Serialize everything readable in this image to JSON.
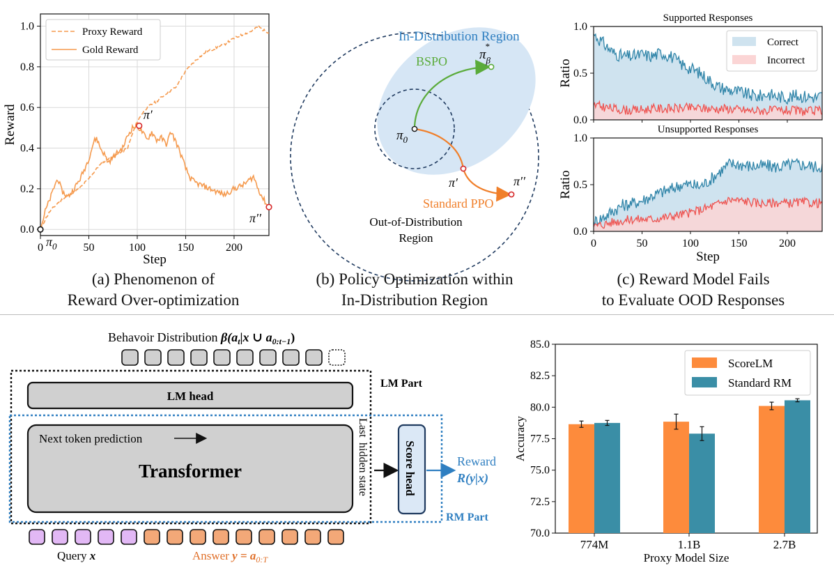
{
  "panel_a": {
    "caption_line1": "(a) Phenomenon of",
    "caption_line2": "Reward Over-optimization",
    "legend": [
      "Proxy Reward",
      "Gold Reward"
    ],
    "points": {
      "pi0": "π",
      "pi0_sub": "0",
      "pi_prime": "π′",
      "pi_dprime": "π′′"
    },
    "colors": {
      "proxy": "#f59a4e",
      "gold": "#f59a4e",
      "marker": "#d62728"
    }
  },
  "panel_b": {
    "caption_line1": "(b) Policy Optimization within",
    "caption_line2": "In-Distribution Region",
    "in_dist_label": "In-Distribution Region",
    "ood_label_line1": "Out-of-Distribution",
    "ood_label_line2": "Region",
    "bspo_label": "BSPO",
    "ppo_label": "Standard PPO",
    "pi0": "π",
    "pi0_sub": "0",
    "pi_prime": "π′",
    "pi_dprime": "π′′",
    "pi_beta": "π",
    "pi_beta_sub": "β",
    "pi_beta_sup": "*",
    "colors": {
      "region": "#d6e6f5",
      "dashed": "#1f3a5f",
      "bspo": "#5aab3a",
      "ppo": "#f07f2a",
      "in_dist_text": "#2f7fc1"
    }
  },
  "panel_c": {
    "caption_line1": "(c) Reward Model Fails",
    "caption_line2": "to Evaluate OOD Responses",
    "legend": [
      "Correct",
      "Incorrect"
    ],
    "colors": {
      "correct_line": "#2f84a8",
      "correct_fill": "#cfe3ef",
      "incorrect_line": "#ef5350",
      "incorrect_fill": "#fbd5d5"
    }
  },
  "diagram": {
    "behavior_label": "Behavoir Distribution ",
    "behavior_math": "β(a_t | x ∪ a_0:t−1)",
    "behavior_math_b": "β",
    "behavior_math_rest": "(a",
    "behavior_math_sub": "t",
    "behavior_math_mid": "|x ∪ a",
    "behavior_math_sub2": "0:t−1",
    "behavior_math_end": ")",
    "lm_part": "LM Part",
    "lm_head": "LM head",
    "next_token": "Next token prediction",
    "transformer": "Transformer",
    "last_hidden_line1": "Last",
    "last_hidden_line2": "hidden state",
    "score_head": "Score head",
    "reward_label": "Reward",
    "reward_math": "R(y|x)",
    "rm_part": "RM Part",
    "query_label": "Query ",
    "query_math": "x",
    "answer_label": "Answer ",
    "answer_math": "y = a",
    "answer_sub": "0:T",
    "colors": {
      "purple": "#e2b8f5",
      "orange": "#f3a878",
      "gray": "#d0d0d0",
      "blue": "#2f7fc1",
      "orange_text": "#e0702a"
    }
  },
  "chart_data": [
    {
      "type": "line",
      "panel": "a",
      "xlabel": "Step",
      "ylabel": "Reward",
      "xlim": [
        0,
        236
      ],
      "ylim": [
        -0.03,
        1.06
      ],
      "xticks": [
        0,
        50,
        100,
        150,
        200
      ],
      "yticks": [
        0.0,
        0.2,
        0.4,
        0.6,
        0.8,
        1.0
      ],
      "grid": true,
      "legend_position": "top-left",
      "series": [
        {
          "name": "Proxy Reward",
          "style": "dashed",
          "points": [
            [
              0,
              0.0
            ],
            [
              5,
              0.05
            ],
            [
              10,
              0.09
            ],
            [
              20,
              0.14
            ],
            [
              30,
              0.17
            ],
            [
              40,
              0.2
            ],
            [
              50,
              0.25
            ],
            [
              60,
              0.31
            ],
            [
              70,
              0.35
            ],
            [
              80,
              0.37
            ],
            [
              90,
              0.4
            ],
            [
              95,
              0.47
            ],
            [
              100,
              0.53
            ],
            [
              105,
              0.57
            ],
            [
              110,
              0.6
            ],
            [
              120,
              0.63
            ],
            [
              130,
              0.67
            ],
            [
              140,
              0.7
            ],
            [
              150,
              0.78
            ],
            [
              160,
              0.83
            ],
            [
              170,
              0.87
            ],
            [
              180,
              0.89
            ],
            [
              190,
              0.91
            ],
            [
              200,
              0.94
            ],
            [
              210,
              0.96
            ],
            [
              220,
              0.98
            ],
            [
              225,
              1.0
            ],
            [
              230,
              0.98
            ],
            [
              236,
              0.97
            ]
          ]
        },
        {
          "name": "Gold Reward",
          "style": "solid",
          "points": [
            [
              0,
              0.0
            ],
            [
              5,
              0.09
            ],
            [
              10,
              0.15
            ],
            [
              15,
              0.22
            ],
            [
              18,
              0.25
            ],
            [
              22,
              0.19
            ],
            [
              28,
              0.16
            ],
            [
              32,
              0.18
            ],
            [
              36,
              0.21
            ],
            [
              40,
              0.24
            ],
            [
              45,
              0.29
            ],
            [
              50,
              0.35
            ],
            [
              55,
              0.43
            ],
            [
              58,
              0.45
            ],
            [
              62,
              0.4
            ],
            [
              66,
              0.37
            ],
            [
              70,
              0.33
            ],
            [
              74,
              0.35
            ],
            [
              80,
              0.38
            ],
            [
              85,
              0.4
            ],
            [
              90,
              0.46
            ],
            [
              95,
              0.5
            ],
            [
              100,
              0.51
            ],
            [
              105,
              0.48
            ],
            [
              110,
              0.44
            ],
            [
              115,
              0.48
            ],
            [
              120,
              0.44
            ],
            [
              125,
              0.45
            ],
            [
              130,
              0.42
            ],
            [
              135,
              0.48
            ],
            [
              140,
              0.43
            ],
            [
              145,
              0.37
            ],
            [
              150,
              0.3
            ],
            [
              155,
              0.25
            ],
            [
              160,
              0.23
            ],
            [
              170,
              0.21
            ],
            [
              180,
              0.19
            ],
            [
              190,
              0.17
            ],
            [
              200,
              0.2
            ],
            [
              210,
              0.22
            ],
            [
              215,
              0.24
            ],
            [
              220,
              0.26
            ],
            [
              225,
              0.2
            ],
            [
              230,
              0.15
            ],
            [
              236,
              0.11
            ]
          ]
        }
      ],
      "markers": [
        {
          "label": "π0",
          "x": 0,
          "y": 0.0
        },
        {
          "label": "π′",
          "x": 102,
          "y": 0.51
        },
        {
          "label": "π′′",
          "x": 236,
          "y": 0.11
        }
      ]
    },
    {
      "type": "area",
      "panel": "c-top",
      "title": "Supported Responses",
      "xlabel": "",
      "ylabel": "Ratio",
      "xlim": [
        0,
        236
      ],
      "ylim": [
        0.0,
        1.0
      ],
      "yticks": [
        0.0,
        0.5,
        1.0
      ],
      "legend_position": "top-right",
      "series": [
        {
          "name": "Correct",
          "points": [
            [
              0,
              0.92
            ],
            [
              10,
              0.82
            ],
            [
              20,
              0.72
            ],
            [
              30,
              0.68
            ],
            [
              40,
              0.68
            ],
            [
              50,
              0.7
            ],
            [
              60,
              0.68
            ],
            [
              70,
              0.72
            ],
            [
              80,
              0.68
            ],
            [
              90,
              0.6
            ],
            [
              100,
              0.55
            ],
            [
              110,
              0.5
            ],
            [
              120,
              0.42
            ],
            [
              130,
              0.35
            ],
            [
              140,
              0.32
            ],
            [
              150,
              0.3
            ],
            [
              160,
              0.27
            ],
            [
              170,
              0.25
            ],
            [
              180,
              0.28
            ],
            [
              190,
              0.25
            ],
            [
              200,
              0.24
            ],
            [
              210,
              0.26
            ],
            [
              220,
              0.25
            ],
            [
              230,
              0.24
            ],
            [
              236,
              0.26
            ]
          ]
        },
        {
          "name": "Incorrect",
          "points": [
            [
              0,
              0.16
            ],
            [
              20,
              0.12
            ],
            [
              40,
              0.1
            ],
            [
              60,
              0.12
            ],
            [
              80,
              0.12
            ],
            [
              100,
              0.13
            ],
            [
              120,
              0.12
            ],
            [
              140,
              0.12
            ],
            [
              160,
              0.1
            ],
            [
              180,
              0.1
            ],
            [
              200,
              0.1
            ],
            [
              220,
              0.09
            ],
            [
              236,
              0.1
            ]
          ]
        }
      ]
    },
    {
      "type": "area",
      "panel": "c-bottom",
      "title": "Unsupported Responses",
      "xlabel": "Step",
      "ylabel": "Ratio",
      "xlim": [
        0,
        236
      ],
      "ylim": [
        0.0,
        1.0
      ],
      "xticks": [
        0,
        50,
        100,
        150,
        200
      ],
      "yticks": [
        0.0,
        0.5,
        1.0
      ],
      "series": [
        {
          "name": "Correct",
          "points": [
            [
              0,
              0.1
            ],
            [
              10,
              0.15
            ],
            [
              20,
              0.22
            ],
            [
              30,
              0.28
            ],
            [
              40,
              0.3
            ],
            [
              50,
              0.33
            ],
            [
              60,
              0.38
            ],
            [
              70,
              0.42
            ],
            [
              80,
              0.45
            ],
            [
              90,
              0.5
            ],
            [
              100,
              0.5
            ],
            [
              110,
              0.48
            ],
            [
              120,
              0.55
            ],
            [
              130,
              0.64
            ],
            [
              140,
              0.72
            ],
            [
              150,
              0.72
            ],
            [
              160,
              0.7
            ],
            [
              170,
              0.7
            ],
            [
              180,
              0.7
            ],
            [
              190,
              0.69
            ],
            [
              200,
              0.71
            ],
            [
              210,
              0.72
            ],
            [
              220,
              0.71
            ],
            [
              230,
              0.69
            ],
            [
              236,
              0.7
            ]
          ]
        },
        {
          "name": "Incorrect",
          "points": [
            [
              0,
              0.05
            ],
            [
              20,
              0.1
            ],
            [
              40,
              0.13
            ],
            [
              60,
              0.13
            ],
            [
              80,
              0.16
            ],
            [
              100,
              0.2
            ],
            [
              120,
              0.26
            ],
            [
              130,
              0.3
            ],
            [
              140,
              0.34
            ],
            [
              150,
              0.33
            ],
            [
              160,
              0.32
            ],
            [
              170,
              0.3
            ],
            [
              180,
              0.3
            ],
            [
              190,
              0.31
            ],
            [
              200,
              0.3
            ],
            [
              210,
              0.31
            ],
            [
              220,
              0.31
            ],
            [
              230,
              0.3
            ],
            [
              236,
              0.31
            ]
          ]
        }
      ]
    },
    {
      "type": "bar",
      "panel": "bottom-right",
      "xlabel": "Proxy Model Size",
      "ylabel": "Accuracy",
      "categories": [
        "774M",
        "1.1B",
        "2.7B"
      ],
      "ylim": [
        70.0,
        85.0
      ],
      "yticks": [
        "70.0",
        "72.5",
        "75.0",
        "77.5",
        "80.0",
        "82.5",
        "85.0"
      ],
      "legend_position": "top-right",
      "series": [
        {
          "name": "ScoreLM",
          "values": [
            78.65,
            78.85,
            80.1
          ],
          "errors": [
            0.25,
            0.6,
            0.3
          ],
          "color": "#fd8b3c"
        },
        {
          "name": "Standard RM",
          "values": [
            78.75,
            77.9,
            80.55
          ],
          "errors": [
            0.2,
            0.55,
            0.12
          ],
          "color": "#3a8ea6"
        }
      ]
    }
  ]
}
